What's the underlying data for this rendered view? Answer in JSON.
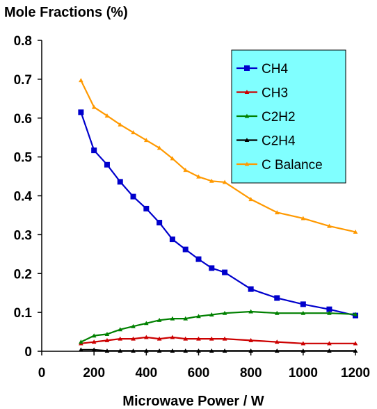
{
  "chart_data": {
    "type": "line",
    "title": "",
    "ylabel": "Mole Fractions (%)",
    "xlabel": "Microwave Power / W",
    "xlim": [
      0,
      1200
    ],
    "ylim": [
      0,
      0.8
    ],
    "x_ticks": [
      0,
      200,
      400,
      600,
      800,
      1000,
      1200
    ],
    "x_tick_labels": [
      "0",
      "200",
      "400",
      "600",
      "800",
      "1000",
      "1200"
    ],
    "y_ticks": [
      0,
      0.1,
      0.2,
      0.3,
      0.4,
      0.5,
      0.6,
      0.7,
      0.8
    ],
    "y_tick_labels": [
      "0",
      "0.1",
      "0.2",
      "0.3",
      "0.4",
      "0.5",
      "0.6",
      "0.7",
      "0.8"
    ],
    "grid": false,
    "legend_position": "top-right",
    "legend_background": "#80FFFF",
    "series": [
      {
        "name": "CH4",
        "color": "#0000CC",
        "marker": "square",
        "x": [
          150,
          200,
          250,
          300,
          350,
          400,
          450,
          500,
          550,
          600,
          650,
          700,
          800,
          900,
          1000,
          1100,
          1200
        ],
        "y": [
          0.615,
          0.517,
          0.48,
          0.436,
          0.398,
          0.367,
          0.331,
          0.288,
          0.262,
          0.237,
          0.214,
          0.203,
          0.16,
          0.137,
          0.121,
          0.108,
          0.092
        ]
      },
      {
        "name": "CH3",
        "color": "#CC0000",
        "marker": "triangle",
        "x": [
          150,
          200,
          250,
          300,
          350,
          400,
          450,
          500,
          550,
          600,
          650,
          700,
          800,
          900,
          1000,
          1100,
          1200
        ],
        "y": [
          0.02,
          0.024,
          0.028,
          0.032,
          0.032,
          0.036,
          0.032,
          0.036,
          0.032,
          0.032,
          0.032,
          0.032,
          0.028,
          0.024,
          0.02,
          0.02,
          0.02
        ]
      },
      {
        "name": "C2H2",
        "color": "#008000",
        "marker": "triangle",
        "x": [
          150,
          200,
          250,
          300,
          350,
          400,
          450,
          500,
          550,
          600,
          650,
          700,
          800,
          900,
          1000,
          1100,
          1200
        ],
        "y": [
          0.024,
          0.04,
          0.044,
          0.056,
          0.064,
          0.072,
          0.08,
          0.084,
          0.084,
          0.09,
          0.094,
          0.098,
          0.102,
          0.098,
          0.098,
          0.098,
          0.095
        ]
      },
      {
        "name": "C2H4",
        "color": "#000000",
        "marker": "triangle",
        "x": [
          150,
          200,
          250,
          300,
          350,
          400,
          450,
          500,
          550,
          600,
          650,
          700,
          800,
          900,
          1000,
          1100,
          1200
        ],
        "y": [
          0.004,
          0.004,
          0.001,
          0.001,
          0.001,
          0.001,
          0.001,
          0.001,
          0.001,
          0.001,
          0.001,
          0.001,
          0.001,
          0.001,
          0.001,
          0.001,
          0.001
        ]
      },
      {
        "name": "C Balance",
        "color": "#FF9900",
        "marker": "triangle",
        "x": [
          150,
          200,
          250,
          300,
          350,
          400,
          450,
          500,
          550,
          600,
          650,
          700,
          800,
          900,
          1000,
          1100,
          1200
        ],
        "y": [
          0.697,
          0.628,
          0.606,
          0.583,
          0.563,
          0.543,
          0.523,
          0.496,
          0.466,
          0.449,
          0.438,
          0.435,
          0.391,
          0.357,
          0.342,
          0.322,
          0.307
        ]
      }
    ]
  }
}
